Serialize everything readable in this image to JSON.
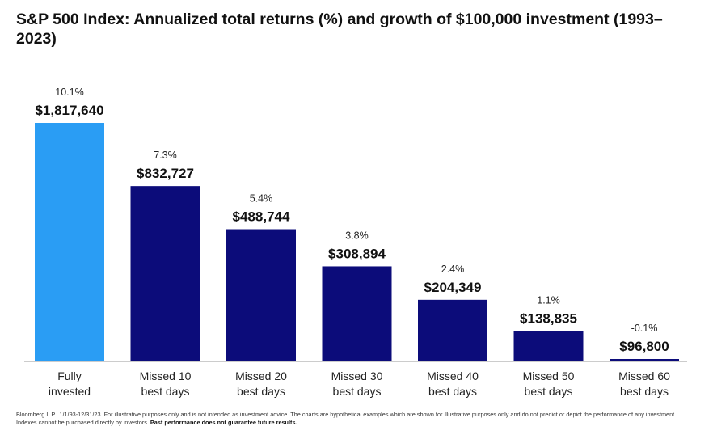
{
  "chart_data": {
    "type": "bar",
    "title": "S&P 500 Index: Annualized total returns (%) and growth of $100,000 investment (1993–2023)",
    "categories": [
      [
        "Fully",
        "invested"
      ],
      [
        "Missed 10",
        "best days"
      ],
      [
        "Missed 20",
        "best days"
      ],
      [
        "Missed 30",
        "best days"
      ],
      [
        "Missed 40",
        "best days"
      ],
      [
        "Missed 50",
        "best days"
      ],
      [
        "Missed 60",
        "best days"
      ]
    ],
    "values": [
      1817640,
      832727,
      488744,
      308894,
      204349,
      138835,
      96800
    ],
    "value_labels": [
      "$1,817,640",
      "$832,727",
      "$488,744",
      "$308,894",
      "$204,349",
      "$138,835",
      "$96,800"
    ],
    "return_labels": [
      "10.1%",
      "7.3%",
      "5.4%",
      "3.8%",
      "2.4%",
      "1.1%",
      "-0.1%"
    ],
    "colors": {
      "highlight": "#2a9df4",
      "bars": "#0c0c7a",
      "baseline": "#999999"
    },
    "grid": false,
    "xlabel": "",
    "ylabel": ""
  },
  "footnote": {
    "text": "Bloomberg L.P., 1/1/93-12/31/23. For illustrative purposes only and is not intended as investment advice. The charts are hypothetical examples which are shown for illustrative purposes only and do not predict or depict the performance of any investment. Indexes cannot be purchased directly by investors.",
    "bold": "Past performance does not guarantee future results."
  }
}
